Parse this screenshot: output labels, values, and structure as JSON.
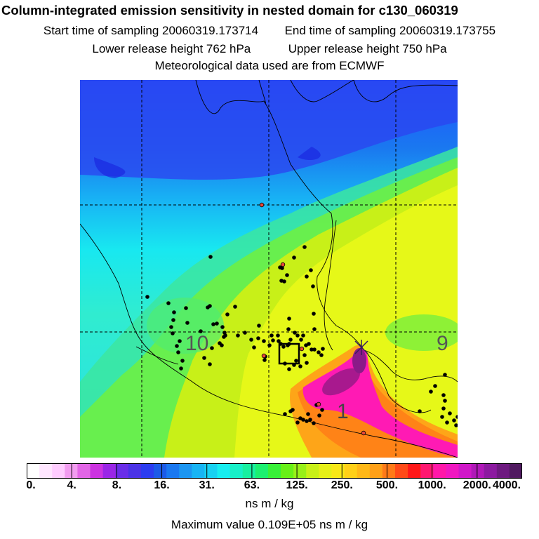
{
  "header": {
    "title": "Column-integrated emission sensitivity in nested domain for c130_060319",
    "start_label": "Start time of sampling 20060319.173714",
    "end_label": "End time of sampling 20060319.173755",
    "lower_label": "Lower release height  762 hPa",
    "upper_label": "Upper release height  750 hPa",
    "met_label": "Meteorological data used are from ECMWF"
  },
  "map": {
    "cluster_labels": [
      "10",
      "9",
      "1"
    ],
    "field_colors": {
      "north": "#1f5cff",
      "mid": "#22d8e8",
      "green": "#5ef05a",
      "yellow": "#d8ff00",
      "orange": "#ffa500",
      "magenta": "#ff1ab4",
      "purple": "#6b1a72"
    },
    "marker_colors": {
      "release": "#000000",
      "point": "#000000",
      "highlight": "#e8483a"
    }
  },
  "colorbar": {
    "colors": [
      "#ffffff",
      "#ffe6ff",
      "#ffccff",
      "#f29cf0",
      "#e266e6",
      "#cc33e0",
      "#9a26e6",
      "#6a2ee8",
      "#4b33e6",
      "#2c3cf0",
      "#1c5ae8",
      "#1a78f0",
      "#1c96f2",
      "#18b4f4",
      "#18d2f2",
      "#18eef0",
      "#18f0c8",
      "#18f0a0",
      "#1cf070",
      "#38f038",
      "#68f018",
      "#98f018",
      "#c8f018",
      "#e6f018",
      "#f8e818",
      "#ffd018",
      "#ffb818",
      "#ffa018",
      "#ff7a18",
      "#ff4a18",
      "#ff1818",
      "#ff1870",
      "#ff18a8",
      "#f018c0",
      "#d018c8",
      "#b018b8",
      "#8c1aa0",
      "#6e1a80",
      "#501a60"
    ],
    "tick_labels": [
      "0.",
      "4.",
      "8.",
      "16.",
      "31.",
      "63.",
      "125.",
      "250.",
      "500.",
      "1000.",
      "2000.",
      "4000."
    ],
    "units": "ns m / kg"
  },
  "max_value": "Maximum value  0.109E+05 ns m / kg"
}
